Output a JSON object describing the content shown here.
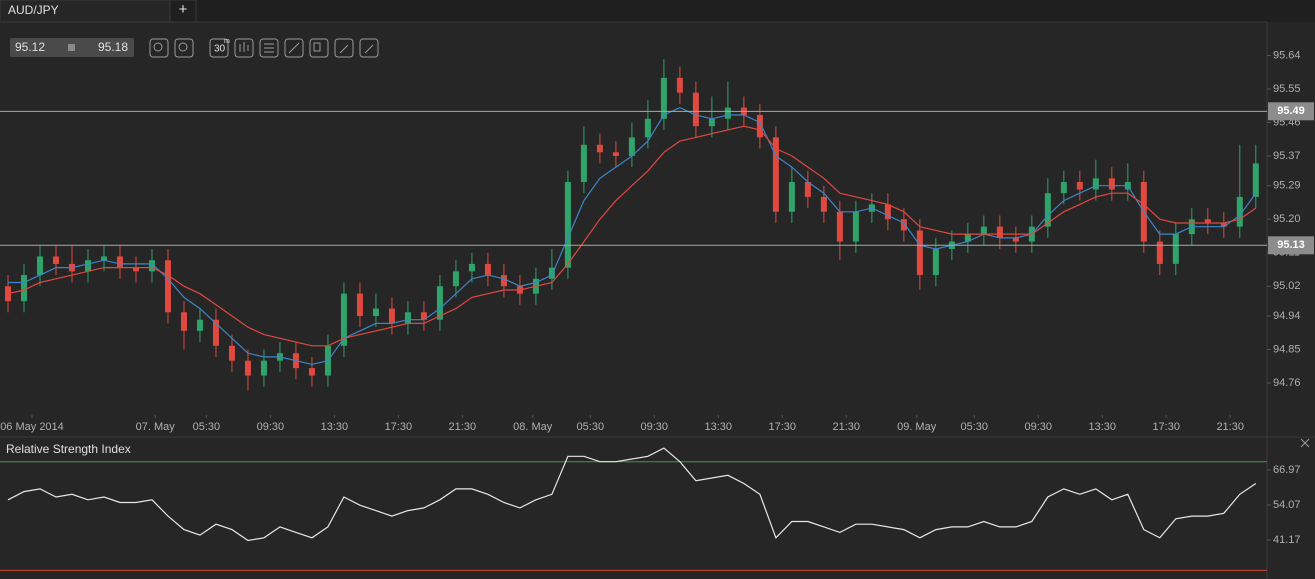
{
  "tab": "AUD/JPY",
  "add_tab": "+",
  "bid": "95.12",
  "ask": "95.18",
  "toolbar": {
    "timeframe": "30",
    "unit": "m"
  },
  "chart_data": [
    {
      "type": "candlestick",
      "up_color": "#2ea36a",
      "down_color": "#e0493f",
      "open": [
        95.02,
        94.98,
        95.05,
        95.1,
        95.08,
        95.06,
        95.09,
        95.1,
        95.07,
        95.06,
        95.09,
        94.95,
        94.9,
        94.93,
        94.86,
        94.82,
        94.78,
        94.82,
        94.84,
        94.8,
        94.78,
        94.86,
        95.0,
        94.94,
        94.96,
        94.92,
        94.95,
        94.93,
        95.02,
        95.06,
        95.08,
        95.05,
        95.02,
        95.0,
        95.04,
        95.07,
        95.3,
        95.4,
        95.38,
        95.37,
        95.42,
        95.47,
        95.58,
        95.54,
        95.45,
        95.47,
        95.5,
        95.48,
        95.42,
        95.22,
        95.3,
        95.26,
        95.22,
        95.14,
        95.22,
        95.24,
        95.2,
        95.17,
        95.05,
        95.12,
        95.14,
        95.16,
        95.18,
        95.15,
        95.14,
        95.18,
        95.27,
        95.3,
        95.28,
        95.31,
        95.28,
        95.3,
        95.14,
        95.08,
        95.16,
        95.2,
        95.19,
        95.18,
        95.26
      ],
      "high": [
        95.05,
        95.08,
        95.13,
        95.13,
        95.13,
        95.12,
        95.13,
        95.13,
        95.1,
        95.12,
        95.12,
        94.98,
        94.96,
        94.96,
        94.89,
        94.85,
        94.85,
        94.87,
        94.87,
        94.83,
        94.89,
        95.03,
        95.03,
        95.0,
        94.99,
        94.98,
        94.98,
        95.05,
        95.09,
        95.11,
        95.11,
        95.08,
        95.05,
        95.07,
        95.12,
        95.33,
        95.45,
        95.43,
        95.41,
        95.46,
        95.52,
        95.63,
        95.61,
        95.57,
        95.53,
        95.57,
        95.53,
        95.51,
        95.45,
        95.34,
        95.33,
        95.29,
        95.25,
        95.25,
        95.27,
        95.27,
        95.23,
        95.2,
        95.15,
        95.17,
        95.19,
        95.21,
        95.21,
        95.18,
        95.21,
        95.31,
        95.33,
        95.33,
        95.36,
        95.34,
        95.35,
        95.33,
        95.17,
        95.19,
        95.23,
        95.23,
        95.22,
        95.4,
        95.4
      ],
      "low": [
        94.95,
        94.95,
        95.02,
        95.05,
        95.03,
        95.03,
        95.06,
        95.04,
        95.03,
        95.03,
        94.92,
        94.85,
        94.87,
        94.83,
        94.79,
        94.74,
        94.75,
        94.79,
        94.77,
        94.75,
        94.75,
        94.83,
        94.91,
        94.91,
        94.89,
        94.89,
        94.9,
        94.9,
        94.99,
        95.03,
        95.02,
        94.99,
        94.97,
        94.97,
        95.01,
        95.04,
        95.27,
        95.35,
        95.34,
        95.34,
        95.39,
        95.44,
        95.51,
        95.42,
        95.42,
        95.44,
        95.45,
        95.39,
        95.19,
        95.19,
        95.23,
        95.19,
        95.09,
        95.11,
        95.19,
        95.17,
        95.14,
        95.01,
        95.02,
        95.09,
        95.11,
        95.13,
        95.12,
        95.11,
        95.11,
        95.15,
        95.24,
        95.25,
        95.25,
        95.25,
        95.25,
        95.11,
        95.05,
        95.05,
        95.13,
        95.16,
        95.15,
        95.15,
        95.23
      ],
      "close": [
        94.98,
        95.05,
        95.1,
        95.08,
        95.06,
        95.09,
        95.1,
        95.07,
        95.06,
        95.09,
        94.95,
        94.9,
        94.93,
        94.86,
        94.82,
        94.78,
        94.82,
        94.84,
        94.8,
        94.78,
        94.86,
        95.0,
        94.94,
        94.96,
        94.92,
        94.95,
        94.93,
        95.02,
        95.06,
        95.08,
        95.05,
        95.02,
        95.0,
        95.04,
        95.07,
        95.3,
        95.4,
        95.38,
        95.37,
        95.42,
        95.47,
        95.58,
        95.54,
        95.45,
        95.47,
        95.5,
        95.48,
        95.42,
        95.22,
        95.3,
        95.26,
        95.22,
        95.14,
        95.22,
        95.24,
        95.2,
        95.17,
        95.05,
        95.12,
        95.14,
        95.16,
        95.18,
        95.15,
        95.14,
        95.18,
        95.27,
        95.3,
        95.28,
        95.31,
        95.28,
        95.3,
        95.14,
        95.08,
        95.16,
        95.2,
        95.19,
        95.18,
        95.26,
        95.35
      ],
      "lines": [
        {
          "color": "#3d86c6",
          "values": [
            95.03,
            95.03,
            95.05,
            95.07,
            95.07,
            95.08,
            95.09,
            95.08,
            95.08,
            95.08,
            95.04,
            94.99,
            94.96,
            94.92,
            94.88,
            94.84,
            94.83,
            94.83,
            94.82,
            94.81,
            94.82,
            94.88,
            94.9,
            94.92,
            94.92,
            94.93,
            94.93,
            94.96,
            95.0,
            95.04,
            95.05,
            95.04,
            95.02,
            95.03,
            95.05,
            95.15,
            95.25,
            95.31,
            95.34,
            95.37,
            95.41,
            95.48,
            95.5,
            95.48,
            95.47,
            95.48,
            95.48,
            95.46,
            95.37,
            95.34,
            95.3,
            95.27,
            95.22,
            95.22,
            95.23,
            95.21,
            95.19,
            95.13,
            95.12,
            95.13,
            95.14,
            95.16,
            95.15,
            95.15,
            95.16,
            95.21,
            95.25,
            95.27,
            95.29,
            95.29,
            95.29,
            95.22,
            95.16,
            95.16,
            95.18,
            95.18,
            95.18,
            95.21,
            95.27
          ]
        },
        {
          "color": "#e0493f",
          "values": [
            95.0,
            95.01,
            95.03,
            95.04,
            95.05,
            95.06,
            95.07,
            95.07,
            95.07,
            95.07,
            95.05,
            95.02,
            95.0,
            94.97,
            94.94,
            94.91,
            94.89,
            94.88,
            94.87,
            94.86,
            94.86,
            94.88,
            94.89,
            94.9,
            94.91,
            94.92,
            94.92,
            94.94,
            94.96,
            94.99,
            95.0,
            95.01,
            95.01,
            95.02,
            95.03,
            95.08,
            95.14,
            95.2,
            95.25,
            95.29,
            95.33,
            95.38,
            95.41,
            95.42,
            95.43,
            95.44,
            95.45,
            95.44,
            95.39,
            95.37,
            95.34,
            95.31,
            95.27,
            95.26,
            95.25,
            95.24,
            95.22,
            95.18,
            95.17,
            95.16,
            95.16,
            95.16,
            95.16,
            95.16,
            95.16,
            95.19,
            95.22,
            95.24,
            95.26,
            95.27,
            95.27,
            95.24,
            95.2,
            95.19,
            95.19,
            95.19,
            95.19,
            95.2,
            95.23
          ]
        }
      ],
      "levels": [
        95.49,
        95.13
      ],
      "ylim": [
        94.674,
        95.73
      ],
      "yticks": [
        95.64,
        95.55,
        95.46,
        95.37,
        95.29,
        {
          "value": 95.2,
          "label": "95.20"
        },
        95.11,
        95.02,
        94.94,
        94.85,
        94.76
      ],
      "xlim": [
        -0.5,
        78.7
      ],
      "xticks": [
        {
          "value": 1.5,
          "label": "06 May 2014"
        },
        {
          "value": 9.2,
          "label": "07. May"
        },
        {
          "value": 12.4,
          "label": "05:30"
        },
        {
          "value": 16.4,
          "label": "09:30"
        },
        {
          "value": 20.4,
          "label": "13:30"
        },
        {
          "value": 24.4,
          "label": "17:30"
        },
        {
          "value": 28.4,
          "label": "21:30"
        },
        {
          "value": 32.8,
          "label": "08. May"
        },
        {
          "value": 36.4,
          "label": "05:30"
        },
        {
          "value": 40.4,
          "label": "09:30"
        },
        {
          "value": 44.4,
          "label": "13:30"
        },
        {
          "value": 48.4,
          "label": "17:30"
        },
        {
          "value": 52.4,
          "label": "21:30"
        },
        {
          "value": 56.8,
          "label": "09. May"
        },
        {
          "value": 60.4,
          "label": "05:30"
        },
        {
          "value": 64.4,
          "label": "09:30"
        },
        {
          "value": 68.4,
          "label": "13:30"
        },
        {
          "value": 72.4,
          "label": "17:30"
        },
        {
          "value": 76.4,
          "label": "21:30"
        }
      ]
    },
    {
      "type": "line",
      "title": "Relative Strength Index",
      "color": "#e8e8e8",
      "values": [
        56,
        59,
        60,
        57,
        58,
        56,
        57,
        55,
        55,
        56,
        50,
        45,
        43,
        47,
        45,
        41,
        42,
        46,
        44,
        42,
        46,
        57,
        54,
        52,
        50,
        52,
        53,
        56,
        60,
        60,
        58,
        55,
        53,
        56,
        58,
        72,
        72,
        70,
        70,
        71,
        72,
        75,
        70,
        63,
        64,
        65,
        62,
        58,
        42,
        48,
        48,
        46,
        44,
        47,
        47,
        46,
        45,
        42,
        45,
        46,
        46,
        48,
        46,
        46,
        48,
        57,
        60,
        58,
        60,
        56,
        58,
        45,
        42,
        49,
        50,
        50,
        51,
        58,
        62
      ],
      "levels": [
        70,
        30
      ],
      "level_colors": [
        "#3c9a4c",
        "#d04a3a"
      ],
      "ylim": [
        28.3,
        78
      ],
      "yticks": [
        66.97,
        54.07,
        41.17
      ]
    }
  ]
}
